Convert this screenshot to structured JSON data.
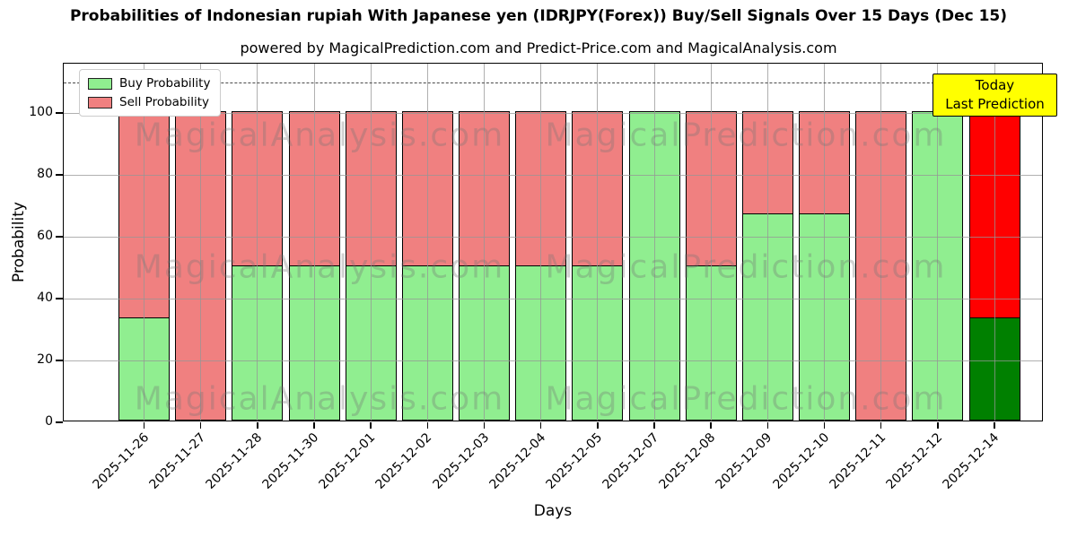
{
  "chart_data": {
    "type": "bar",
    "stacked": true,
    "title": "Probabilities of Indonesian rupiah With Japanese yen (IDRJPY(Forex)) Buy/Sell Signals Over 15 Days (Dec 15)",
    "subtitle": "powered by MagicalPrediction.com and Predict-Price.com and MagicalAnalysis.com",
    "xlabel": "Days",
    "ylabel": "Probability",
    "ylim": [
      0,
      116
    ],
    "yticks": [
      0,
      20,
      40,
      60,
      80,
      100
    ],
    "grid": true,
    "dashed_cutoff_y": 110,
    "legend_position": "upper-left",
    "categories": [
      "2025-11-26",
      "2025-11-27",
      "2025-11-28",
      "2025-11-30",
      "2025-12-01",
      "2025-12-02",
      "2025-12-03",
      "2025-12-04",
      "2025-12-05",
      "2025-12-07",
      "2025-12-08",
      "2025-12-09",
      "2025-12-10",
      "2025-12-11",
      "2025-12-12",
      "2025-12-14"
    ],
    "series": [
      {
        "name": "Buy Probability",
        "color": "#90ee90",
        "values": [
          33,
          0,
          50,
          50,
          50,
          50,
          50,
          50,
          50,
          100,
          50,
          67,
          67,
          0,
          100,
          33
        ]
      },
      {
        "name": "Sell Probability",
        "color": "#f08080",
        "values": [
          67,
          100,
          50,
          50,
          50,
          50,
          50,
          50,
          50,
          0,
          50,
          33,
          33,
          100,
          0,
          67
        ]
      }
    ],
    "today_bar": {
      "category": "2025-12-14",
      "index": 15,
      "buy_color": "#008000",
      "sell_color": "#ff0000"
    },
    "annotation": {
      "text_lines": [
        "Today",
        "Last Prediction"
      ],
      "bg_color": "#ffff00"
    },
    "watermarks": [
      "MagicalAnalysis.com",
      "MagicalPrediction.com"
    ],
    "bar_edge_color": "#000000"
  }
}
